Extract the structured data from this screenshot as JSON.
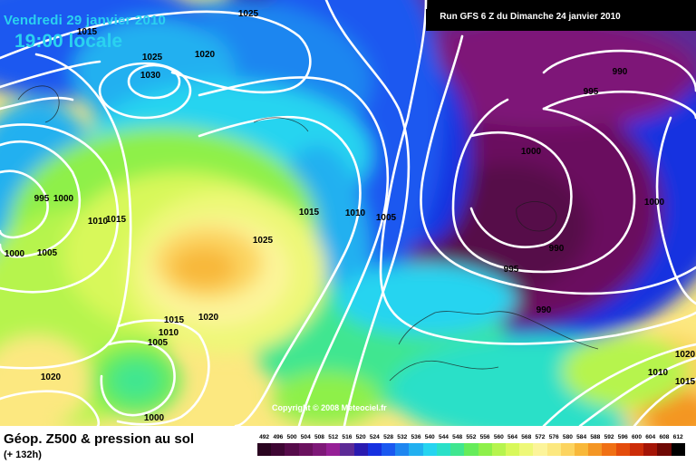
{
  "header": {
    "date": "Vendredi 29 janvier 2010",
    "time": "19:00 locale",
    "run": "Run GFS 6 Z du Dimanche 24 janvier 2010",
    "copyright": "Copyright © 2008 Meteociel.fr"
  },
  "footer": {
    "title": "Géop. Z500 & pression au sol",
    "subtitle": "(+ 132h)"
  },
  "legend": {
    "values": [
      "492",
      "496",
      "500",
      "504",
      "508",
      "512",
      "516",
      "520",
      "524",
      "528",
      "532",
      "536",
      "540",
      "544",
      "548",
      "552",
      "556",
      "560",
      "564",
      "568",
      "572",
      "576",
      "580",
      "584",
      "588",
      "592",
      "596",
      "600",
      "604",
      "608",
      "612"
    ],
    "colors": [
      "#2a0420",
      "#3e0633",
      "#560b4a",
      "#6a115e",
      "#7e1878",
      "#961f96",
      "#5c2a96",
      "#2a1ab0",
      "#1630e0",
      "#1a58f0",
      "#1e86f0",
      "#22b0f0",
      "#26d4f0",
      "#2ae0c8",
      "#40e690",
      "#66ec5a",
      "#8ef04a",
      "#b6f44e",
      "#d8f85a",
      "#eef878",
      "#fcf49a",
      "#fce880",
      "#fcd460",
      "#f8b83a",
      "#f49624",
      "#f07014",
      "#e44c0c",
      "#cc2c08",
      "#a41406",
      "#6e0804",
      "#000000"
    ]
  },
  "isobar_labels": [
    {
      "text": "1025",
      "pos": [
        274,
        18
      ]
    },
    {
      "text": "1015",
      "pos": [
        96,
        38
      ]
    },
    {
      "text": "1025",
      "pos": [
        168,
        66
      ]
    },
    {
      "text": "1020",
      "pos": [
        226,
        63
      ]
    },
    {
      "text": "1030",
      "pos": [
        166,
        86
      ]
    },
    {
      "text": "990",
      "pos": [
        684,
        82
      ]
    },
    {
      "text": "995",
      "pos": [
        652,
        104
      ]
    },
    {
      "text": "1000",
      "pos": [
        586,
        170
      ]
    },
    {
      "text": "995",
      "pos": [
        46,
        222
      ]
    },
    {
      "text": "1000",
      "pos": [
        70,
        222
      ]
    },
    {
      "text": "1000",
      "pos": [
        722,
        226
      ]
    },
    {
      "text": "1015",
      "pos": [
        341,
        237
      ]
    },
    {
      "text": "1010",
      "pos": [
        392,
        238
      ]
    },
    {
      "text": "1005",
      "pos": [
        426,
        243
      ]
    },
    {
      "text": "1010",
      "pos": [
        108,
        247
      ]
    },
    {
      "text": "1015",
      "pos": [
        128,
        245
      ]
    },
    {
      "text": "1025",
      "pos": [
        290,
        268
      ]
    },
    {
      "text": "990",
      "pos": [
        614,
        277
      ]
    },
    {
      "text": "1005",
      "pos": [
        52,
        282
      ]
    },
    {
      "text": "1000",
      "pos": [
        16,
        283
      ]
    },
    {
      "text": "995",
      "pos": [
        564,
        300
      ]
    },
    {
      "text": "1020",
      "pos": [
        230,
        353
      ]
    },
    {
      "text": "1015",
      "pos": [
        192,
        356
      ]
    },
    {
      "text": "990",
      "pos": [
        600,
        345
      ]
    },
    {
      "text": "1010",
      "pos": [
        186,
        370
      ]
    },
    {
      "text": "1005",
      "pos": [
        174,
        381
      ]
    },
    {
      "text": "1020",
      "pos": [
        756,
        394
      ]
    },
    {
      "text": "1010",
      "pos": [
        726,
        414
      ]
    },
    {
      "text": "1020",
      "pos": [
        56,
        419
      ]
    },
    {
      "text": "1015",
      "pos": [
        756,
        424
      ]
    },
    {
      "text": "1000",
      "pos": [
        170,
        464
      ]
    }
  ]
}
